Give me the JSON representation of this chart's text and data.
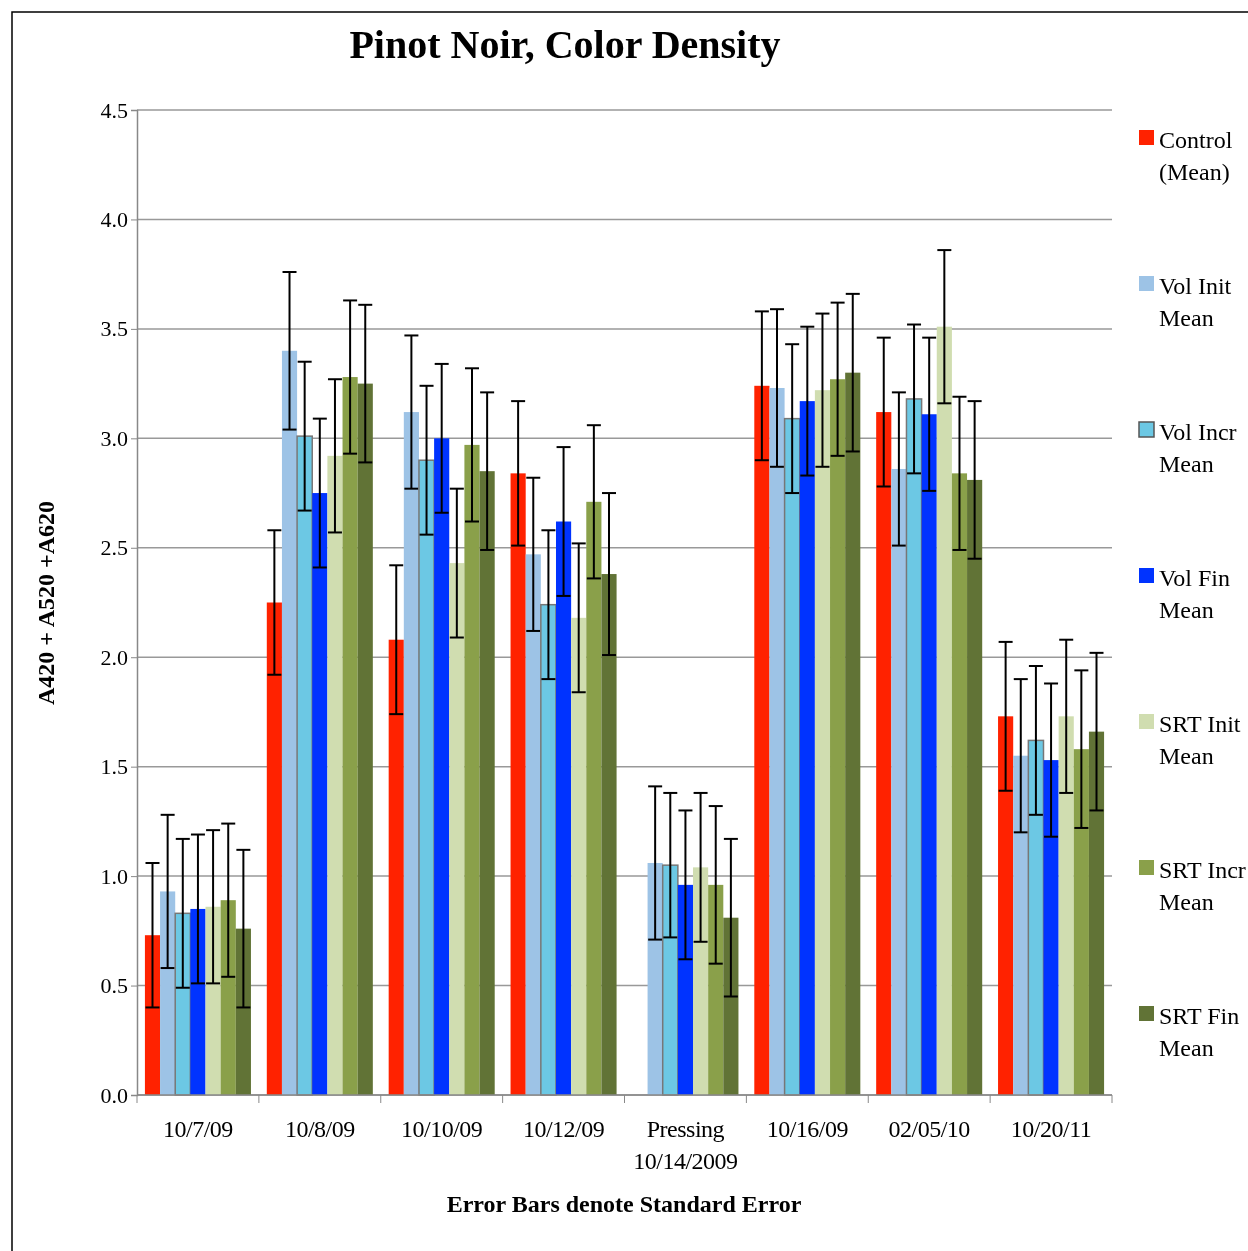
{
  "chart_data": {
    "type": "bar",
    "title": "Pinot Noir, Color Density",
    "xlabel": "Error Bars denote Standard Error",
    "ylabel": "A420 + A520 +A620",
    "categories": [
      "10/7/09",
      "10/8/09",
      "10/10/09",
      "10/12/09",
      "Pressing 10/14/2009",
      "10/16/09",
      "02/05/10",
      "10/20/11"
    ],
    "series": [
      {
        "name": "Control (Mean)",
        "color": "#ff2200",
        "values": [
          0.73,
          2.25,
          2.08,
          2.84,
          null,
          3.24,
          3.12,
          1.73
        ],
        "errors": [
          0.33,
          0.33,
          0.34,
          0.33,
          null,
          0.34,
          0.34,
          0.34
        ]
      },
      {
        "name": "Vol Init Mean",
        "color": "#9dc3e6",
        "values": [
          0.93,
          3.4,
          3.12,
          2.47,
          1.06,
          3.23,
          2.86,
          1.55
        ],
        "errors": [
          0.35,
          0.36,
          0.35,
          0.35,
          0.35,
          0.36,
          0.35,
          0.35
        ]
      },
      {
        "name": "Vol Incr Mean",
        "color": "#6cc8e4",
        "values": [
          0.83,
          3.01,
          2.9,
          2.24,
          1.05,
          3.09,
          3.18,
          1.62
        ],
        "errors": [
          0.34,
          0.34,
          0.34,
          0.34,
          0.33,
          0.34,
          0.34,
          0.34
        ]
      },
      {
        "name": "Vol Fin Mean",
        "color": "#0033ff",
        "values": [
          0.85,
          2.75,
          3.0,
          2.62,
          0.96,
          3.17,
          3.11,
          1.53
        ],
        "errors": [
          0.34,
          0.34,
          0.34,
          0.34,
          0.34,
          0.34,
          0.35,
          0.35
        ]
      },
      {
        "name": "SRT Init Mean",
        "color": "#d0ddb0",
        "values": [
          0.86,
          2.92,
          2.43,
          2.18,
          1.04,
          3.22,
          3.51,
          1.73
        ],
        "errors": [
          0.35,
          0.35,
          0.34,
          0.34,
          0.34,
          0.35,
          0.35,
          0.35
        ]
      },
      {
        "name": "SRT Incr Mean",
        "color": "#8aa04a",
        "values": [
          0.89,
          3.28,
          2.97,
          2.71,
          0.96,
          3.27,
          2.84,
          1.58
        ],
        "errors": [
          0.35,
          0.35,
          0.35,
          0.35,
          0.36,
          0.35,
          0.35,
          0.36
        ]
      },
      {
        "name": "SRT Fin Mean",
        "color": "#617336",
        "values": [
          0.76,
          3.25,
          2.85,
          2.38,
          0.81,
          3.3,
          2.81,
          1.66
        ],
        "errors": [
          0.36,
          0.36,
          0.36,
          0.37,
          0.36,
          0.36,
          0.36,
          0.36
        ]
      }
    ],
    "ylim": [
      0,
      4.5
    ],
    "yticks": [
      {
        "value": 0,
        "label": "0.0"
      },
      0.5,
      {
        "value": 1,
        "label": "1.0"
      },
      1.5,
      {
        "value": 2,
        "label": "2.0"
      },
      2.5,
      {
        "value": 3,
        "label": "3.0"
      },
      3.5,
      {
        "value": 4,
        "label": "4.0"
      },
      4.5
    ],
    "grid": "y",
    "legend": "right"
  }
}
